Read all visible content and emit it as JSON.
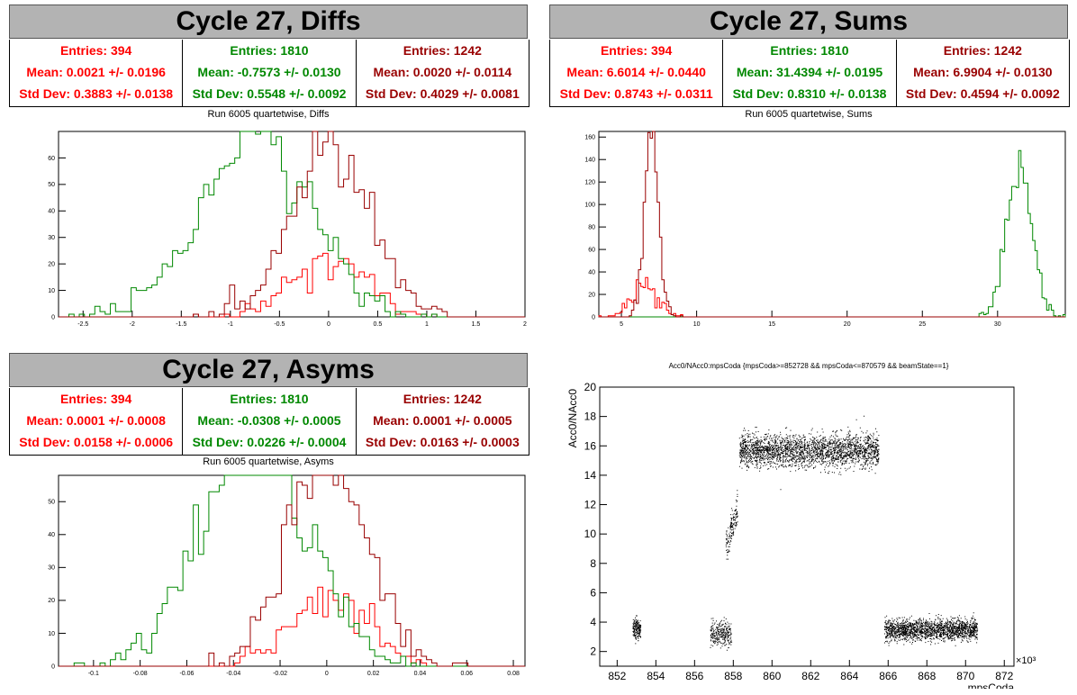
{
  "colors": {
    "red": "#ff0000",
    "green": "#008800",
    "darkred": "#990000",
    "titlebar": "#b3b3b3"
  },
  "panels": [
    {
      "title": "Cycle 27, Diffs",
      "subtitle": "Run 6005 quartetwise, Diffs",
      "stats": [
        {
          "color": "#ff0000",
          "entries": "Entries: 394",
          "mean": "Mean: 0.0021 +/- 0.0196",
          "std": "Std Dev: 0.3883 +/- 0.0138"
        },
        {
          "color": "#008800",
          "entries": "Entries: 1810",
          "mean": "Mean: -0.7573 +/- 0.0130",
          "std": "Std Dev: 0.5548 +/- 0.0092"
        },
        {
          "color": "#990000",
          "entries": "Entries: 1242",
          "mean": "Mean: 0.0020 +/- 0.0114",
          "std": "Std Dev: 0.4029 +/- 0.0081"
        }
      ]
    },
    {
      "title": "Cycle 27, Sums",
      "subtitle": "Run 6005 quartetwise, Sums",
      "stats": [
        {
          "color": "#ff0000",
          "entries": "Entries: 394",
          "mean": "Mean: 6.6014 +/- 0.0440",
          "std": "Std Dev: 0.8743 +/- 0.0311"
        },
        {
          "color": "#008800",
          "entries": "Entries: 1810",
          "mean": "Mean: 31.4394 +/- 0.0195",
          "std": "Std Dev: 0.8310 +/- 0.0138"
        },
        {
          "color": "#990000",
          "entries": "Entries: 1242",
          "mean": "Mean: 6.9904 +/- 0.0130",
          "std": "Std Dev: 0.4594 +/- 0.0092"
        }
      ]
    },
    {
      "title": "Cycle 27, Asyms",
      "subtitle": "Run 6005 quartetwise, Asyms",
      "stats": [
        {
          "color": "#ff0000",
          "entries": "Entries: 394",
          "mean": "Mean: 0.0001 +/- 0.0008",
          "std": "Std Dev: 0.0158 +/- 0.0006"
        },
        {
          "color": "#008800",
          "entries": "Entries: 1810",
          "mean": "Mean: -0.0308 +/- 0.0005",
          "std": "Std Dev: 0.0226 +/- 0.0004"
        },
        {
          "color": "#990000",
          "entries": "Entries: 1242",
          "mean": "Mean: 0.0001 +/- 0.0005",
          "std": "Std Dev: 0.0163 +/- 0.0003"
        }
      ]
    }
  ],
  "scatter_title": "Acc0/NAcc0:mpsCoda {mpsCoda>=852728 && mpsCoda<=870579 && beamState==1}",
  "chart_data": [
    {
      "type": "histogram",
      "xlim": [
        -2.75,
        2.0
      ],
      "ylim": [
        0,
        70
      ],
      "xticks": [
        -2.5,
        -2,
        -1.5,
        -1,
        -0.5,
        0,
        0.5,
        1,
        1.5,
        2
      ],
      "xtick_labels": [
        "-2.5",
        "-2",
        "-1.5",
        "-1",
        "-0.5",
        "0",
        "0.5",
        "1",
        "1.5",
        "2"
      ],
      "yticks": [
        0,
        10,
        20,
        30,
        40,
        50,
        60
      ],
      "ytick_labels": [
        "0",
        "10",
        "20",
        "30",
        "40",
        "50",
        "60"
      ],
      "series": [
        {
          "color": "#ff0000",
          "entries": 394,
          "mean": 0.0021,
          "std": 0.3883,
          "bins": 90
        },
        {
          "color": "#008800",
          "entries": 1810,
          "mean": -0.7573,
          "std": 0.5548,
          "bins": 90
        },
        {
          "color": "#990000",
          "entries": 1242,
          "mean": 0.002,
          "std": 0.4029,
          "bins": 90
        }
      ]
    },
    {
      "type": "histogram",
      "xlim": [
        3.5,
        34.5
      ],
      "ylim": [
        0,
        165
      ],
      "xticks": [
        5,
        10,
        15,
        20,
        25,
        30
      ],
      "xtick_labels": [
        "5",
        "10",
        "15",
        "20",
        "25",
        "30"
      ],
      "yticks": [
        0,
        20,
        40,
        60,
        80,
        100,
        120,
        140,
        160
      ],
      "ytick_labels": [
        "0",
        "20",
        "40",
        "60",
        "80",
        "100",
        "120",
        "140",
        "160"
      ],
      "series": [
        {
          "color": "#ff0000",
          "entries": 394,
          "mean": 6.6014,
          "std": 0.8743,
          "bins": 200
        },
        {
          "color": "#008800",
          "entries": 1810,
          "mean": 31.4394,
          "std": 0.831,
          "bins": 200
        },
        {
          "color": "#990000",
          "entries": 1242,
          "mean": 6.9904,
          "std": 0.4594,
          "bins": 200
        }
      ]
    },
    {
      "type": "histogram",
      "xlim": [
        -0.115,
        0.085
      ],
      "ylim": [
        0,
        58
      ],
      "xticks": [
        -0.1,
        -0.08,
        -0.06,
        -0.04,
        -0.02,
        0,
        0.02,
        0.04,
        0.06,
        0.08
      ],
      "xtick_labels": [
        "-0.1",
        "-0.08",
        "-0.06",
        "-0.04",
        "-0.02",
        "0",
        "0.02",
        "0.04",
        "0.06",
        "0.08"
      ],
      "yticks": [
        0,
        10,
        20,
        30,
        40,
        50
      ],
      "ytick_labels": [
        "0",
        "10",
        "20",
        "30",
        "40",
        "50"
      ],
      "series": [
        {
          "color": "#ff0000",
          "entries": 394,
          "mean": 0.0001,
          "std": 0.0158,
          "bins": 90
        },
        {
          "color": "#008800",
          "entries": 1810,
          "mean": -0.0308,
          "std": 0.0226,
          "bins": 90
        },
        {
          "color": "#990000",
          "entries": 1242,
          "mean": 0.0001,
          "std": 0.0163,
          "bins": 90
        }
      ]
    },
    {
      "type": "scatter",
      "xlabel": "mpsCoda",
      "ylabel": "Acc0/NAcc0",
      "x_multiplier": "×10³",
      "xlim": [
        851.1,
        872.5
      ],
      "ylim": [
        1,
        20
      ],
      "xticks": [
        852,
        854,
        856,
        858,
        860,
        862,
        864,
        866,
        868,
        870,
        872
      ],
      "xtick_labels": [
        "852",
        "854",
        "856",
        "858",
        "860",
        "862",
        "864",
        "866",
        "868",
        "870",
        "872"
      ],
      "yticks": [
        2,
        4,
        6,
        8,
        10,
        12,
        14,
        16,
        18,
        20
      ],
      "ytick_labels": [
        "2",
        "4",
        "6",
        "8",
        "10",
        "12",
        "14",
        "16",
        "18",
        "20"
      ],
      "clusters": [
        {
          "x": [
            852.8,
            853.2
          ],
          "y_mean": 3.6,
          "y_spread": 0.35,
          "n": 200
        },
        {
          "x": [
            856.8,
            857.9
          ],
          "y_mean": 3.2,
          "y_spread": 0.4,
          "n": 300
        },
        {
          "x": [
            857.6,
            858.2
          ],
          "y_mean": 10.5,
          "y_spread": 1.4,
          "n": 150
        },
        {
          "x": [
            858.3,
            865.5
          ],
          "y_mean": 15.7,
          "y_spread": 0.55,
          "n": 2500
        },
        {
          "x": [
            865.8,
            870.6
          ],
          "y_mean": 3.5,
          "y_spread": 0.35,
          "n": 1800
        }
      ]
    }
  ]
}
